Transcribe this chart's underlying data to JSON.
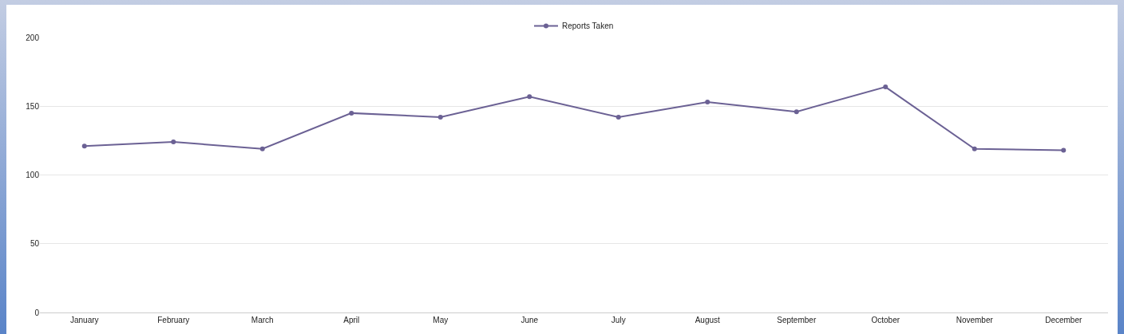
{
  "chart_data": {
    "type": "line",
    "categories": [
      "January",
      "February",
      "March",
      "April",
      "May",
      "June",
      "July",
      "August",
      "September",
      "October",
      "November",
      "December"
    ],
    "series": [
      {
        "name": "Reports Taken",
        "color": "#6b6194",
        "values": [
          121,
          124,
          119,
          145,
          142,
          157,
          142,
          153,
          146,
          164,
          119,
          118
        ]
      }
    ],
    "ylim": [
      0,
      200
    ],
    "yticks": [
      0,
      50,
      100,
      150,
      200
    ],
    "grid": "y",
    "legend": "top",
    "marker": "circle",
    "line_style": "solid"
  }
}
